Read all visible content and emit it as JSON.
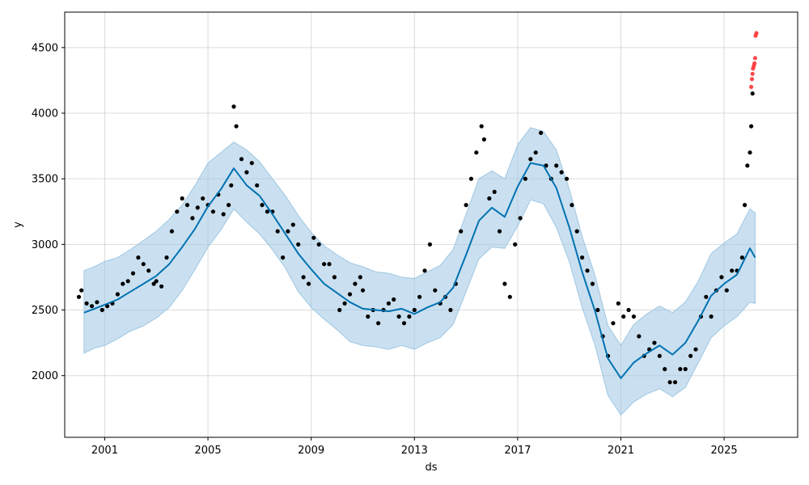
{
  "chart_data": {
    "type": "scatter",
    "title": "",
    "xlabel": "ds",
    "ylabel": "y",
    "grid": true,
    "legend": "none",
    "xlim": [
      1999.45,
      2027.85
    ],
    "ylim": [
      1530,
      4770
    ],
    "x_ticks": [
      2001,
      2005,
      2009,
      2013,
      2017,
      2021,
      2025
    ],
    "x_tick_labels": [
      "2001",
      "2005",
      "2009",
      "2013",
      "2017",
      "2021",
      "2025"
    ],
    "y_ticks": [
      2000,
      2500,
      3000,
      3500,
      4000,
      4500
    ],
    "y_tick_labels": [
      "2000",
      "2500",
      "3000",
      "3500",
      "4000",
      "4500"
    ],
    "colors": {
      "observed": "#000000",
      "future_observed": "#ff2a2a",
      "forecast_line": "#0072B2",
      "interval_fill": "#9ec7e3",
      "grid": "#cccccc"
    },
    "series": [
      {
        "kind": "interval",
        "x": [
          2000.2,
          2000.6,
          2001.0,
          2001.5,
          2002.0,
          2002.5,
          2003.0,
          2003.5,
          2004.0,
          2004.5,
          2005.0,
          2005.5,
          2006.0,
          2006.5,
          2007.0,
          2007.5,
          2008.0,
          2008.5,
          2009.0,
          2009.5,
          2010.0,
          2010.5,
          2011.0,
          2011.5,
          2012.0,
          2012.5,
          2013.0,
          2013.5,
          2014.0,
          2014.5,
          2015.0,
          2015.5,
          2016.0,
          2016.5,
          2017.0,
          2017.5,
          2018.0,
          2018.5,
          2019.0,
          2019.5,
          2020.0,
          2020.5,
          2021.0,
          2021.5,
          2022.0,
          2022.5,
          2023.0,
          2023.5,
          2024.0,
          2024.5,
          2025.0,
          2025.5,
          2026.0,
          2026.2
        ],
        "lower": [
          2170,
          2210,
          2230,
          2280,
          2340,
          2380,
          2440,
          2520,
          2650,
          2810,
          2980,
          3110,
          3270,
          3170,
          3080,
          2960,
          2820,
          2640,
          2520,
          2430,
          2350,
          2260,
          2230,
          2220,
          2200,
          2230,
          2200,
          2250,
          2290,
          2390,
          2640,
          2890,
          2980,
          2970,
          3140,
          3340,
          3310,
          3130,
          2870,
          2520,
          2230,
          1850,
          1700,
          1800,
          1860,
          1900,
          1840,
          1910,
          2100,
          2290,
          2380,
          2450,
          2560,
          2550
        ],
        "upper": [
          2800,
          2830,
          2870,
          2900,
          2960,
          3030,
          3100,
          3190,
          3300,
          3450,
          3620,
          3700,
          3780,
          3720,
          3630,
          3500,
          3370,
          3220,
          3090,
          2990,
          2920,
          2860,
          2830,
          2790,
          2780,
          2750,
          2740,
          2790,
          2840,
          2960,
          3230,
          3500,
          3560,
          3500,
          3760,
          3890,
          3860,
          3720,
          3420,
          3060,
          2760,
          2380,
          2230,
          2390,
          2470,
          2530,
          2480,
          2560,
          2720,
          2930,
          3010,
          3080,
          3270,
          3240
        ]
      },
      {
        "kind": "line",
        "x": [
          2000.2,
          2000.6,
          2001.0,
          2001.5,
          2002.0,
          2002.5,
          2003.0,
          2003.5,
          2004.0,
          2004.5,
          2005.0,
          2005.5,
          2006.0,
          2006.5,
          2007.0,
          2007.5,
          2008.0,
          2008.5,
          2009.0,
          2009.5,
          2010.0,
          2010.5,
          2011.0,
          2011.5,
          2012.0,
          2012.5,
          2013.0,
          2013.5,
          2014.0,
          2014.5,
          2015.0,
          2015.5,
          2016.0,
          2016.5,
          2017.0,
          2017.5,
          2018.0,
          2018.5,
          2019.0,
          2019.5,
          2020.0,
          2020.5,
          2021.0,
          2021.5,
          2022.0,
          2022.5,
          2023.0,
          2023.5,
          2024.0,
          2024.5,
          2025.0,
          2025.5,
          2026.0,
          2026.2
        ],
        "values": [
          2480,
          2510,
          2540,
          2580,
          2640,
          2700,
          2760,
          2850,
          2980,
          3120,
          3290,
          3420,
          3580,
          3450,
          3370,
          3230,
          3080,
          2930,
          2810,
          2700,
          2630,
          2560,
          2510,
          2500,
          2490,
          2510,
          2470,
          2520,
          2560,
          2670,
          2920,
          3180,
          3280,
          3210,
          3440,
          3620,
          3600,
          3430,
          3130,
          2790,
          2490,
          2130,
          1980,
          2100,
          2170,
          2230,
          2160,
          2250,
          2420,
          2610,
          2700,
          2770,
          2970,
          2900
        ]
      },
      {
        "kind": "points",
        "role": "observed",
        "x": [
          2000.0,
          2000.1,
          2000.3,
          2000.5,
          2000.7,
          2000.9,
          2001.1,
          2001.3,
          2001.5,
          2001.7,
          2001.9,
          2002.1,
          2002.3,
          2002.5,
          2002.7,
          2002.9,
          2003.0,
          2003.2,
          2003.4,
          2003.6,
          2003.8,
          2004.0,
          2004.2,
          2004.4,
          2004.6,
          2004.8,
          2005.0,
          2005.2,
          2005.4,
          2005.6,
          2005.8,
          2005.9,
          2006.0,
          2006.1,
          2006.3,
          2006.5,
          2006.7,
          2006.9,
          2007.1,
          2007.3,
          2007.5,
          2007.7,
          2007.9,
          2008.1,
          2008.3,
          2008.5,
          2008.7,
          2008.9,
          2009.1,
          2009.3,
          2009.5,
          2009.7,
          2009.9,
          2010.1,
          2010.3,
          2010.5,
          2010.7,
          2010.9,
          2011.0,
          2011.2,
          2011.4,
          2011.6,
          2011.8,
          2012.0,
          2012.2,
          2012.4,
          2012.6,
          2012.8,
          2013.0,
          2013.2,
          2013.4,
          2013.6,
          2013.8,
          2014.0,
          2014.2,
          2014.4,
          2014.6,
          2014.8,
          2015.0,
          2015.2,
          2015.4,
          2015.6,
          2015.7,
          2015.9,
          2016.1,
          2016.3,
          2016.5,
          2016.7,
          2016.9,
          2017.1,
          2017.3,
          2017.5,
          2017.7,
          2017.9,
          2018.1,
          2018.3,
          2018.5,
          2018.7,
          2018.9,
          2019.1,
          2019.3,
          2019.5,
          2019.7,
          2019.9,
          2020.1,
          2020.3,
          2020.5,
          2020.7,
          2020.9,
          2021.1,
          2021.3,
          2021.5,
          2021.7,
          2021.9,
          2022.1,
          2022.3,
          2022.5,
          2022.7,
          2022.9,
          2023.1,
          2023.3,
          2023.5,
          2023.7,
          2023.9,
          2024.1,
          2024.3,
          2024.5,
          2024.7,
          2024.9,
          2025.1,
          2025.3,
          2025.5,
          2025.7,
          2025.8,
          2025.9,
          2026.0,
          2026.05,
          2026.1
        ],
        "values": [
          2600,
          2650,
          2550,
          2530,
          2560,
          2500,
          2530,
          2550,
          2620,
          2700,
          2720,
          2780,
          2900,
          2850,
          2800,
          2700,
          2720,
          2680,
          2900,
          3100,
          3250,
          3350,
          3300,
          3200,
          3280,
          3350,
          3300,
          3250,
          3380,
          3230,
          3300,
          3450,
          4050,
          3900,
          3650,
          3550,
          3620,
          3450,
          3300,
          3250,
          3250,
          3100,
          2900,
          3100,
          3150,
          3000,
          2750,
          2700,
          3050,
          3000,
          2850,
          2850,
          2750,
          2500,
          2550,
          2620,
          2700,
          2750,
          2650,
          2450,
          2500,
          2400,
          2500,
          2550,
          2580,
          2450,
          2400,
          2450,
          2500,
          2600,
          2800,
          3000,
          2650,
          2550,
          2600,
          2500,
          2700,
          3100,
          3300,
          3500,
          3700,
          3900,
          3800,
          3350,
          3400,
          3100,
          2700,
          2600,
          3000,
          3200,
          3500,
          3650,
          3700,
          3850,
          3600,
          3500,
          3600,
          3550,
          3500,
          3300,
          3100,
          2900,
          2800,
          2700,
          2500,
          2300,
          2150,
          2400,
          2550,
          2450,
          2500,
          2450,
          2300,
          2150,
          2200,
          2250,
          2150,
          2050,
          1950,
          1950,
          2050,
          2050,
          2150,
          2200,
          2450,
          2600,
          2450,
          2650,
          2750,
          2650,
          2800,
          2800,
          2900,
          3300,
          3600,
          3700,
          3900,
          4150
        ]
      },
      {
        "kind": "points",
        "role": "future_observed",
        "x": [
          2026.05,
          2026.08,
          2026.1,
          2026.12,
          2026.15,
          2026.18,
          2026.2,
          2026.22,
          2026.25
        ],
        "values": [
          4200,
          4260,
          4300,
          4340,
          4360,
          4380,
          4420,
          4590,
          4610
        ]
      }
    ]
  }
}
